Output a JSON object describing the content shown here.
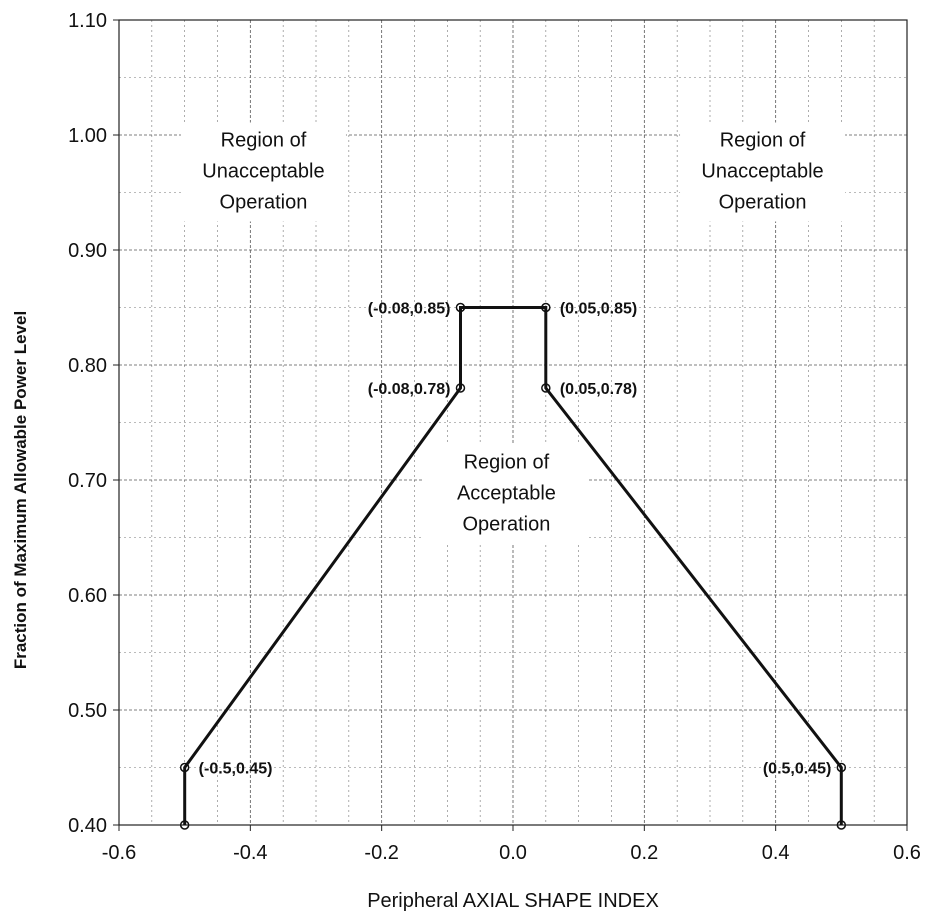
{
  "chart_data": {
    "type": "line",
    "title": "",
    "xlabel": "Peripheral AXIAL SHAPE INDEX",
    "ylabel": "Fraction of Maximum Allowable Power Level",
    "xlim": [
      -0.6,
      0.6
    ],
    "ylim": [
      0.4,
      1.1
    ],
    "x_ticks": [
      "-0.6",
      "-0.4",
      "-0.2",
      "0.0",
      "0.2",
      "0.4",
      "0.6"
    ],
    "y_ticks": [
      "0.40",
      "0.50",
      "0.60",
      "0.70",
      "0.80",
      "0.90",
      "1.00",
      "1.10"
    ],
    "grid": true,
    "legend": "none",
    "series": [
      {
        "points": [
          {
            "x": -0.5,
            "y": 0.4
          },
          {
            "x": -0.5,
            "y": 0.45
          },
          {
            "x": -0.08,
            "y": 0.78
          },
          {
            "x": -0.08,
            "y": 0.85
          },
          {
            "x": 0.05,
            "y": 0.85
          },
          {
            "x": 0.05,
            "y": 0.78
          },
          {
            "x": 0.5,
            "y": 0.45
          },
          {
            "x": 0.5,
            "y": 0.4
          }
        ]
      }
    ],
    "point_labels": [
      {
        "text": "(-0.08,0.85)",
        "x": -0.08,
        "y": 0.85,
        "side": "left"
      },
      {
        "text": "(0.05,0.85)",
        "x": 0.05,
        "y": 0.85,
        "side": "right"
      },
      {
        "text": "(-0.08,0.78)",
        "x": -0.08,
        "y": 0.78,
        "side": "left"
      },
      {
        "text": "(0.05,0.78)",
        "x": 0.05,
        "y": 0.78,
        "side": "right"
      },
      {
        "text": "(-0.5,0.45)",
        "x": -0.5,
        "y": 0.45,
        "side": "right"
      },
      {
        "text": "(0.5,0.45)",
        "x": 0.5,
        "y": 0.45,
        "side": "left"
      }
    ],
    "region_labels": [
      {
        "lines": [
          "Region of",
          "Unacceptable",
          "Operation"
        ],
        "x": -0.38,
        "y": 0.99
      },
      {
        "lines": [
          "Region of",
          "Unacceptable",
          "Operation"
        ],
        "x": 0.38,
        "y": 0.99
      },
      {
        "lines": [
          "Region of",
          "Acceptable",
          "Operation"
        ],
        "x": -0.01,
        "y": 0.71
      }
    ],
    "colors": {
      "line": "#111111",
      "grid": "#555555",
      "background": "#ffffff"
    }
  }
}
